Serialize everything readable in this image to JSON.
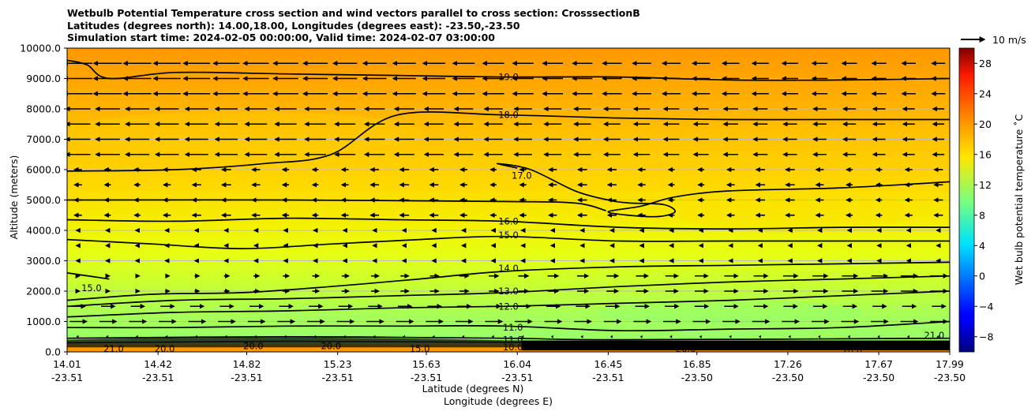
{
  "chart_data": {
    "type": "cross-section",
    "title_lines": [
      "Wetbulb Potential Temperature cross section and wind vectors parallel to cross section: CrosssectionB",
      "Latitudes (degrees north): 14.00,18.00, Longitudes (degrees east): -23.50,-23.50",
      "Simulation start time: 2024-02-05 00:00:00, Valid time: 2024-02-07 03:00:00"
    ],
    "ylabel": "Altitude (meters)",
    "xlabel_lat": "Latitude (degrees N)",
    "xlabel_lon": "Longitude (degrees E)",
    "ylim": [
      0,
      10000
    ],
    "yticks": [
      "0.0",
      "1000.0",
      "2000.0",
      "3000.0",
      "4000.0",
      "5000.0",
      "6000.0",
      "7000.0",
      "8000.0",
      "9000.0",
      "10000.0"
    ],
    "x_range": [
      14.01,
      17.99
    ],
    "xticks": [
      {
        "lat": "14.01",
        "lon": "-23.51"
      },
      {
        "lat": "14.42",
        "lon": "-23.51"
      },
      {
        "lat": "14.82",
        "lon": "-23.51"
      },
      {
        "lat": "15.23",
        "lon": "-23.51"
      },
      {
        "lat": "15.63",
        "lon": "-23.51"
      },
      {
        "lat": "16.04",
        "lon": "-23.51"
      },
      {
        "lat": "16.45",
        "lon": "-23.51"
      },
      {
        "lat": "16.85",
        "lon": "-23.50"
      },
      {
        "lat": "17.26",
        "lon": "-23.50"
      },
      {
        "lat": "17.67",
        "lon": "-23.50"
      },
      {
        "lat": "17.99",
        "lon": "-23.50"
      }
    ],
    "colorbar": {
      "label": "Wet bulb potential temperature ˚C",
      "range": [
        -10,
        30
      ],
      "ticks": [
        "−8",
        "−4",
        "0",
        "4",
        "8",
        "12",
        "16",
        "20",
        "24",
        "28"
      ],
      "colormap": "jet"
    },
    "quiver_key": {
      "label": "10 m/s"
    },
    "contour_labels": [
      "19.0",
      "18.0",
      "17.0",
      "16.0",
      "15.0",
      "15.0",
      "14.0",
      "13.0",
      "12.0",
      "11.0",
      "11.0",
      "10.0",
      "10.0",
      "21.0",
      "20.0",
      "20.0",
      "20.0",
      "15.0",
      "21.0"
    ],
    "contours": [
      {
        "level": 19,
        "label": "19.0",
        "label_pos": [
          16.0,
          9050
        ],
        "points": [
          [
            14.01,
            9600
          ],
          [
            14.1,
            9450
          ],
          [
            14.2,
            9000
          ],
          [
            14.5,
            9200
          ],
          [
            15.0,
            9150
          ],
          [
            15.5,
            9100
          ],
          [
            15.98,
            9050
          ],
          [
            16.5,
            9050
          ],
          [
            17.0,
            8950
          ],
          [
            17.5,
            8950
          ],
          [
            17.99,
            9000
          ]
        ]
      },
      {
        "level": 18,
        "label": "18.0",
        "label_pos": [
          16.0,
          7800
        ],
        "points": [
          [
            14.01,
            5950
          ],
          [
            14.5,
            6000
          ],
          [
            14.9,
            6200
          ],
          [
            15.2,
            6500
          ],
          [
            15.5,
            7800
          ],
          [
            15.98,
            7800
          ],
          [
            16.5,
            7700
          ],
          [
            17.0,
            7650
          ],
          [
            17.5,
            7650
          ],
          [
            17.99,
            7650
          ]
        ]
      },
      {
        "level": 17,
        "label": "17.0",
        "label_pos": [
          16.06,
          5800
        ],
        "points": [
          [
            16.04,
            6050
          ],
          [
            15.95,
            6200
          ],
          [
            16.1,
            6000
          ],
          [
            16.3,
            5300
          ],
          [
            16.45,
            5000
          ],
          [
            16.55,
            4900
          ],
          [
            16.7,
            4850
          ],
          [
            16.75,
            4600
          ],
          [
            16.65,
            4450
          ],
          [
            16.45,
            4600
          ],
          [
            16.6,
            4800
          ],
          [
            16.75,
            5100
          ],
          [
            17.0,
            5300
          ],
          [
            17.5,
            5400
          ],
          [
            17.99,
            5600
          ]
        ]
      },
      {
        "level": 16,
        "label": "16.0",
        "label_pos": [
          16.0,
          4300
        ],
        "points": [
          [
            14.01,
            4350
          ],
          [
            14.5,
            4300
          ],
          [
            15.0,
            4400
          ],
          [
            15.5,
            4350
          ],
          [
            15.98,
            4300
          ],
          [
            16.5,
            4100
          ],
          [
            17.0,
            4050
          ],
          [
            17.5,
            4100
          ],
          [
            17.99,
            4100
          ]
        ]
      },
      {
        "level": 15.5,
        "label": "",
        "label_pos": null,
        "points": [
          [
            14.01,
            5000
          ],
          [
            15.0,
            5000
          ],
          [
            15.98,
            4950
          ],
          [
            16.3,
            4900
          ],
          [
            16.44,
            4650
          ]
        ]
      },
      {
        "level": 15,
        "label": "15.0",
        "label_pos": [
          16.0,
          3850
        ],
        "points": [
          [
            14.01,
            3700
          ],
          [
            14.4,
            3550
          ],
          [
            14.8,
            3400
          ],
          [
            15.2,
            3550
          ],
          [
            15.6,
            3700
          ],
          [
            15.98,
            3800
          ],
          [
            16.5,
            3650
          ],
          [
            17.0,
            3650
          ],
          [
            17.99,
            3650
          ]
        ]
      },
      {
        "level": 15,
        "label": "15.0",
        "label_pos": [
          14.12,
          2100
        ],
        "points": [
          [
            14.01,
            2600
          ],
          [
            14.2,
            2400
          ]
        ]
      },
      {
        "level": 14,
        "label": "14.0",
        "label_pos": [
          16.0,
          2750
        ],
        "points": [
          [
            14.01,
            1700
          ],
          [
            14.4,
            1900
          ],
          [
            14.8,
            1950
          ],
          [
            15.2,
            2150
          ],
          [
            15.6,
            2400
          ],
          [
            15.98,
            2650
          ],
          [
            16.5,
            2800
          ],
          [
            17.0,
            2850
          ],
          [
            17.5,
            2900
          ],
          [
            17.99,
            2950
          ]
        ]
      },
      {
        "level": 13,
        "label": "13.0",
        "label_pos": [
          16.0,
          2000
        ],
        "points": [
          [
            14.01,
            1500
          ],
          [
            14.5,
            1700
          ],
          [
            15.0,
            1750
          ],
          [
            15.5,
            1850
          ],
          [
            15.98,
            1950
          ],
          [
            16.5,
            2150
          ],
          [
            17.0,
            2300
          ],
          [
            17.5,
            2400
          ],
          [
            17.99,
            2500
          ]
        ]
      },
      {
        "level": 12,
        "label": "12.0",
        "label_pos": [
          16.0,
          1500
        ],
        "points": [
          [
            14.01,
            1150
          ],
          [
            14.5,
            1300
          ],
          [
            15.0,
            1350
          ],
          [
            15.5,
            1450
          ],
          [
            15.98,
            1500
          ],
          [
            16.5,
            1600
          ],
          [
            17.0,
            1700
          ],
          [
            17.5,
            1850
          ],
          [
            17.99,
            2000
          ]
        ]
      },
      {
        "level": 11,
        "label": "11.0",
        "label_pos": [
          16.02,
          800
        ],
        "points": [
          [
            14.01,
            800
          ],
          [
            14.5,
            800
          ],
          [
            15.0,
            850
          ],
          [
            15.5,
            850
          ],
          [
            15.98,
            850
          ],
          [
            16.5,
            700
          ],
          [
            17.0,
            750
          ],
          [
            17.5,
            800
          ],
          [
            17.99,
            1000
          ]
        ]
      },
      {
        "level": 11,
        "label": "11.0",
        "label_pos": [
          16.02,
          400
        ],
        "points": [
          [
            14.01,
            450
          ],
          [
            15.0,
            500
          ],
          [
            15.98,
            450
          ],
          [
            16.5,
            400
          ],
          [
            17.99,
            450
          ]
        ]
      },
      {
        "level": 10,
        "label": "10.0",
        "label_pos": [
          16.02,
          150
        ],
        "points": [
          [
            14.01,
            300
          ],
          [
            15.0,
            350
          ],
          [
            16.5,
            300
          ],
          [
            17.99,
            300
          ]
        ]
      }
    ]
  }
}
